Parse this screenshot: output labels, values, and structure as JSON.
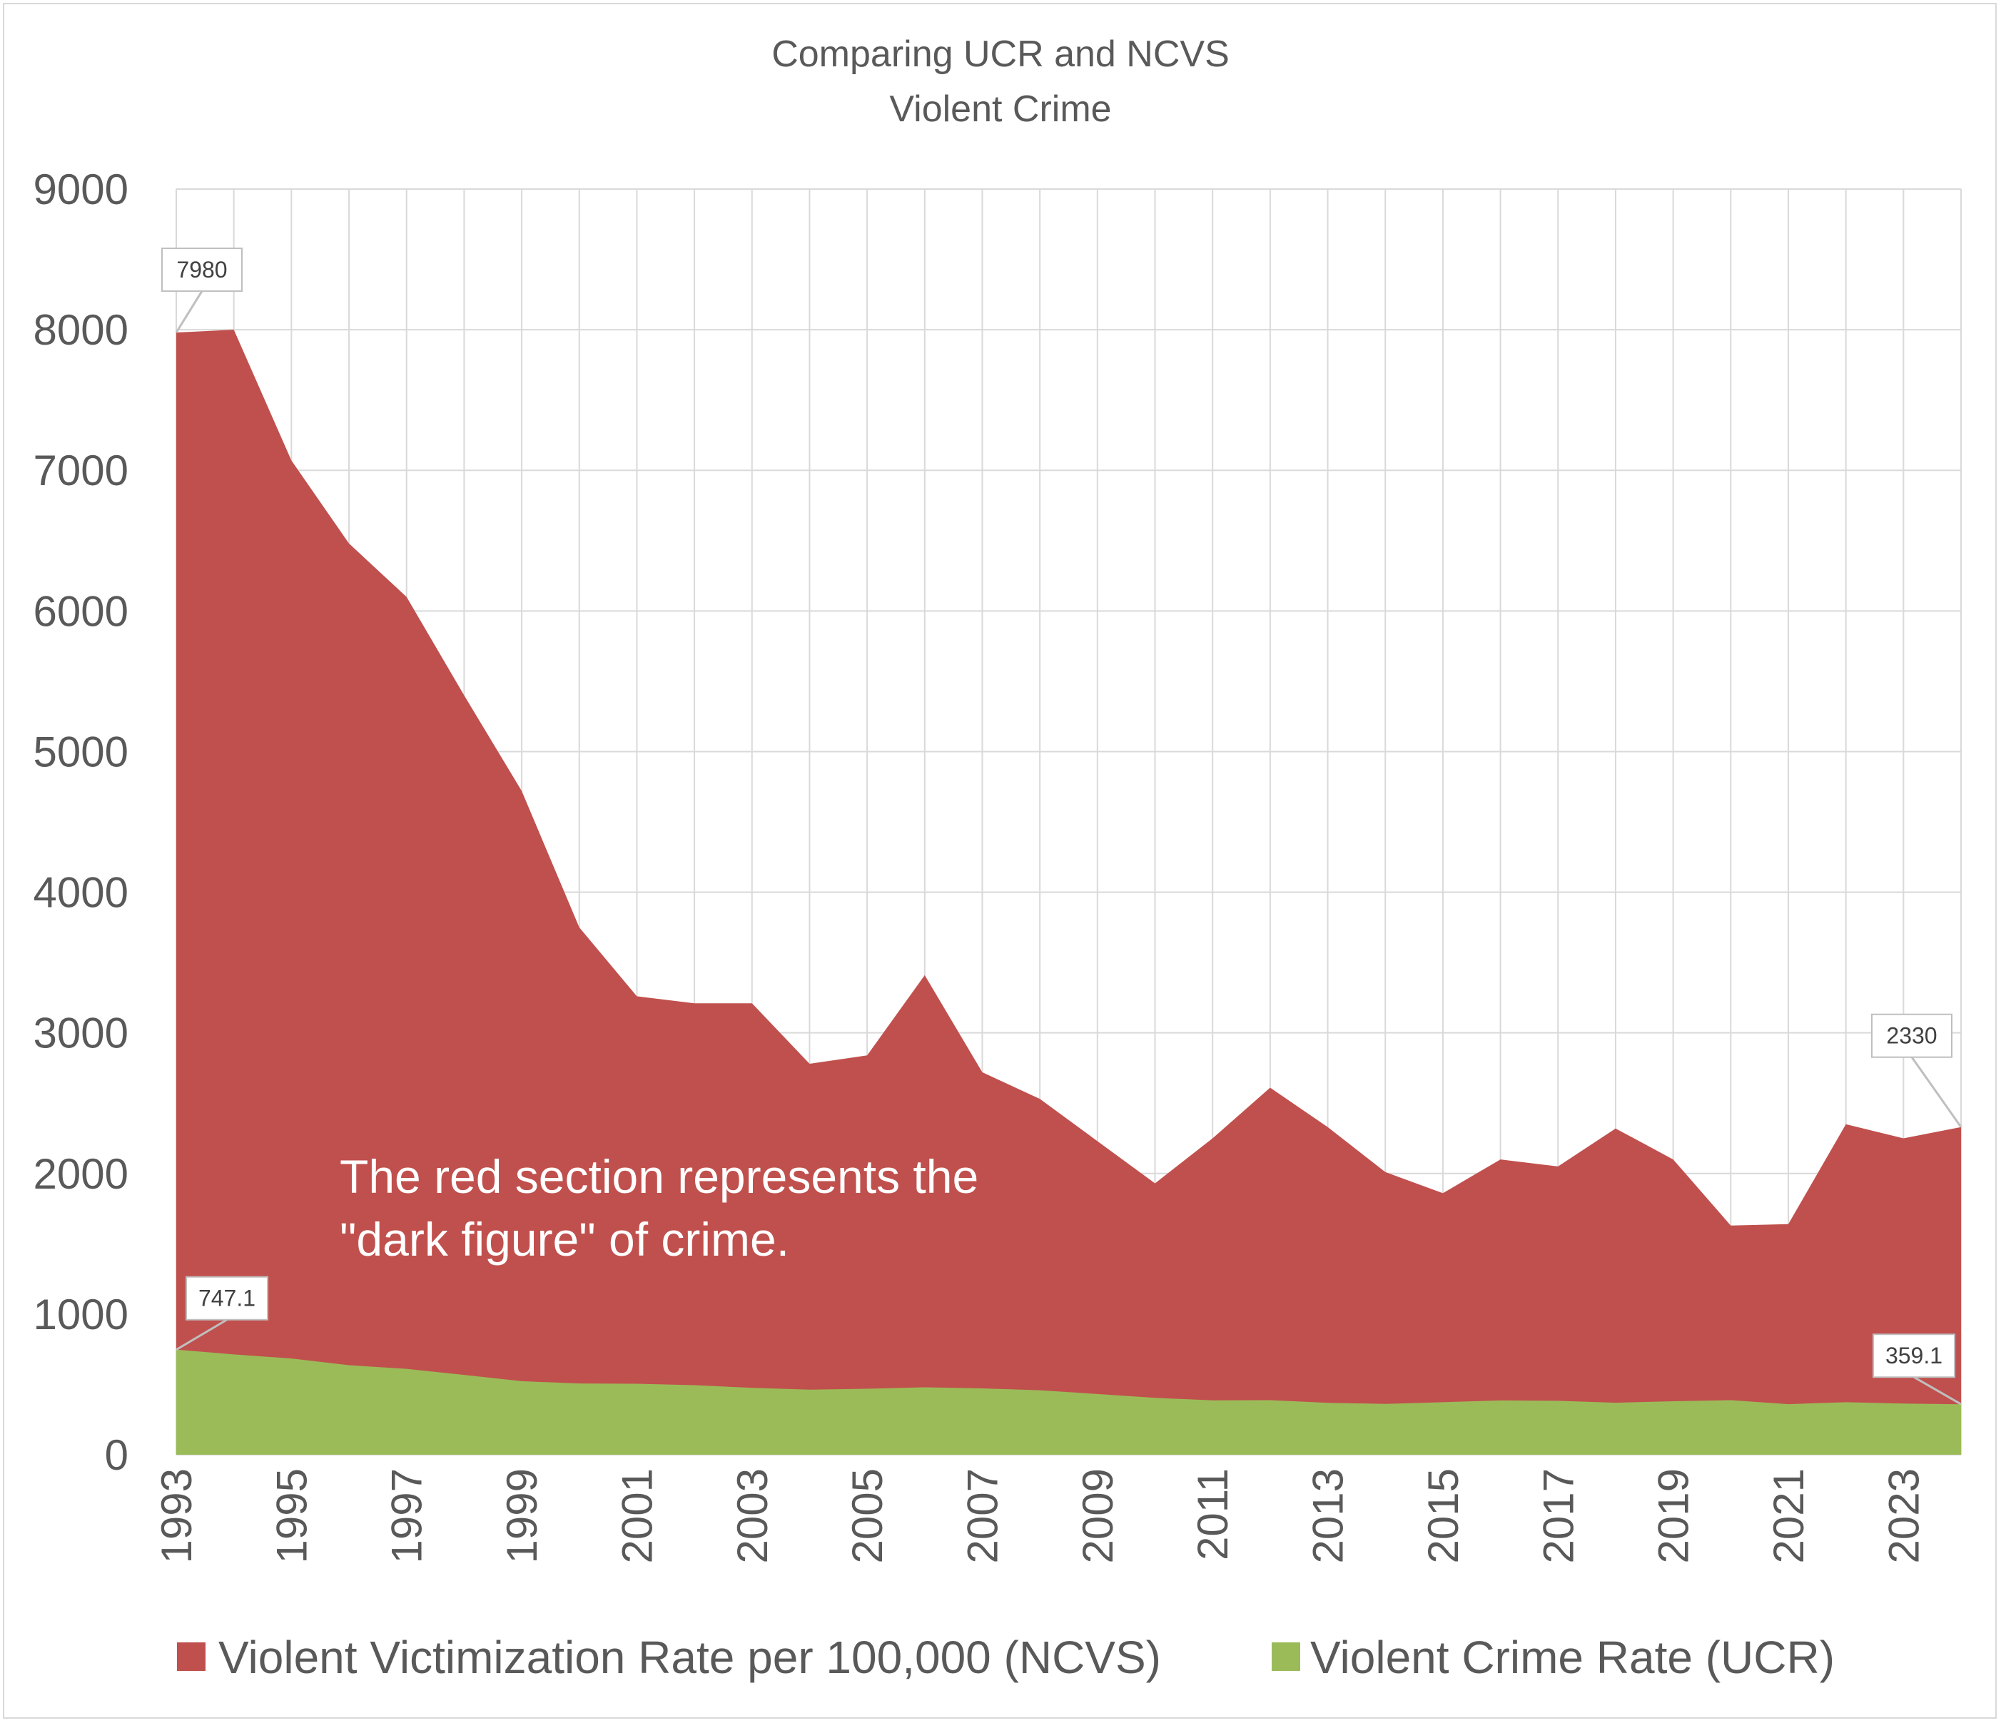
{
  "chart_data": {
    "type": "area",
    "title": [
      "Comparing UCR and NCVS",
      "Violent Crime"
    ],
    "xlabel": "",
    "ylabel": "",
    "ylim": [
      0,
      9000
    ],
    "yticks": [
      0,
      1000,
      2000,
      3000,
      4000,
      5000,
      6000,
      7000,
      8000,
      9000
    ],
    "x": [
      1993,
      1994,
      1995,
      1996,
      1997,
      1998,
      1999,
      2000,
      2001,
      2002,
      2003,
      2004,
      2005,
      2006,
      2007,
      2008,
      2009,
      2010,
      2011,
      2012,
      2013,
      2014,
      2015,
      2016,
      2017,
      2018,
      2019,
      2020,
      2021,
      2022,
      2023,
      2024
    ],
    "xtick_labels": [
      "1993",
      "1995",
      "1997",
      "1999",
      "2001",
      "2003",
      "2005",
      "2007",
      "2009",
      "2011",
      "2013",
      "2015",
      "2017",
      "2019",
      "2021",
      "2023"
    ],
    "grid": true,
    "legend_position": "bottom",
    "series": [
      {
        "name": "Violent Victimization Rate per 100,000 (NCVS)",
        "color": "#c0504d",
        "values": [
          7980,
          8000,
          7070,
          6480,
          6100,
          5400,
          4720,
          3750,
          3260,
          3210,
          3210,
          2780,
          2840,
          3410,
          2720,
          2530,
          2230,
          1930,
          2250,
          2610,
          2330,
          2010,
          1860,
          2100,
          2050,
          2320,
          2100,
          1630,
          1640,
          2350,
          2250,
          2330
        ]
      },
      {
        "name": "Violent Crime Rate (UCR)",
        "color": "#9bbb59",
        "values": [
          747.1,
          713.6,
          684.5,
          636.6,
          611.0,
          567.6,
          523.0,
          506.5,
          504.5,
          494.4,
          475.8,
          463.2,
          469.0,
          479.3,
          471.8,
          458.6,
          431.9,
          404.5,
          387.1,
          387.8,
          369.1,
          361.6,
          373.7,
          386.3,
          383.8,
          369.8,
          380.8,
          388.0,
          359.8,
          373.8,
          363.8,
          359.1
        ]
      }
    ],
    "callouts": [
      {
        "series": 0,
        "index": 0,
        "label": "7980"
      },
      {
        "series": 0,
        "index": 31,
        "label": "2330"
      },
      {
        "series": 1,
        "index": 0,
        "label": "747.1"
      },
      {
        "series": 1,
        "index": 31,
        "label": "359.1"
      }
    ],
    "annotation": [
      "The red section represents the",
      "\"dark figure\" of crime."
    ]
  }
}
